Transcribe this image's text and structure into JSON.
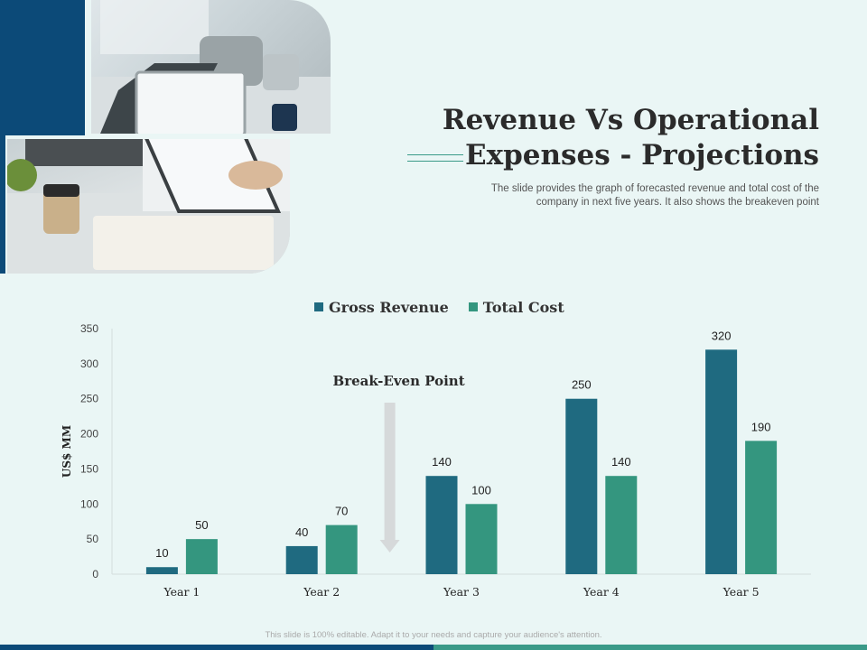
{
  "header": {
    "title_line1": "Revenue Vs Operational",
    "title_line2": "Expenses - Projections",
    "subtitle_line1": "The slide provides the graph of forecasted revenue and total cost of the",
    "subtitle_line2": "company in next five years. It also shows the breakeven point"
  },
  "footer_note": "This slide is 100% editable. Adapt it to your needs and capture your audience's attention.",
  "colors": {
    "primary": "#0c4a78",
    "revenue": "#1f6a80",
    "cost": "#34967f",
    "background": "#eaf6f5"
  },
  "chart_data": {
    "type": "bar",
    "categories": [
      "Year 1",
      "Year 2",
      "Year 3",
      "Year 4",
      "Year 5"
    ],
    "series": [
      {
        "name": "Gross Revenue",
        "values": [
          10,
          40,
          140,
          250,
          320
        ]
      },
      {
        "name": "Total Cost",
        "values": [
          50,
          70,
          100,
          140,
          190
        ]
      }
    ],
    "title": "",
    "xlabel": "",
    "ylabel": "US$ MM",
    "ylim": [
      0,
      350
    ],
    "yticks": [
      0,
      50,
      100,
      150,
      200,
      250,
      300,
      350
    ],
    "legend_position": "top",
    "grid": false,
    "data_labels": true,
    "annotation": {
      "text": "Break-Even Point",
      "between_categories": [
        "Year 2",
        "Year 3"
      ],
      "arrow": "down"
    }
  }
}
